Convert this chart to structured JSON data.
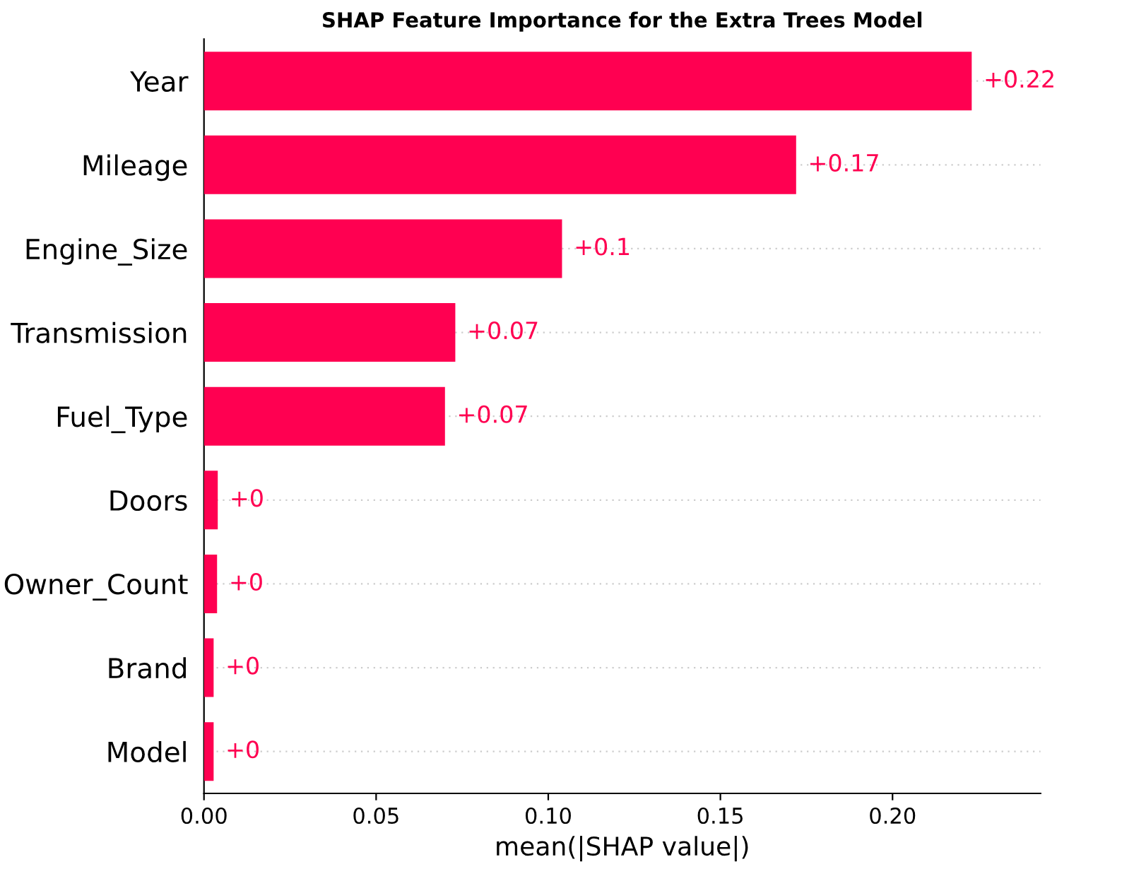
{
  "chart_data": {
    "type": "bar",
    "orientation": "horizontal",
    "title": "SHAP Feature Importance for the Extra Trees Model",
    "xlabel": "mean(|SHAP value|)",
    "categories": [
      "Year",
      "Mileage",
      "Engine_Size",
      "Transmission",
      "Fuel_Type",
      "Doors",
      "Owner_Count",
      "Brand",
      "Model"
    ],
    "values": [
      0.223,
      0.172,
      0.104,
      0.073,
      0.07,
      0.004,
      0.0038,
      0.0028,
      0.0028
    ],
    "value_labels": [
      "+0.22",
      "+0.17",
      "+0.1",
      "+0.07",
      "+0.07",
      "+0",
      "+0",
      "+0",
      "+0"
    ],
    "color": "#ff0051",
    "xlim": [
      0,
      0.243
    ],
    "xticks": [
      {
        "value": 0,
        "label": "0.00"
      },
      0.05,
      {
        "value": 0.1,
        "label": "0.10"
      },
      0.15,
      {
        "value": 0.2,
        "label": "0.20"
      }
    ],
    "grid": "y"
  }
}
